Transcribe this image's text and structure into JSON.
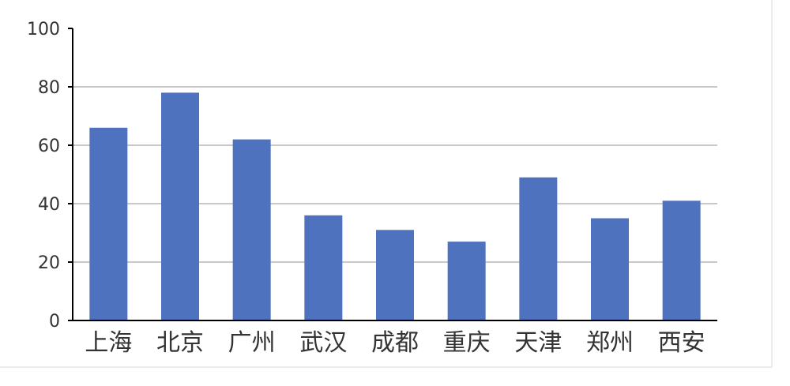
{
  "chart_data": {
    "type": "bar",
    "categories": [
      "上海",
      "北京",
      "广州",
      "武汉",
      "成都",
      "重庆",
      "天津",
      "郑州",
      "西安"
    ],
    "values": [
      66,
      78,
      62,
      36,
      31,
      27,
      49,
      35,
      41
    ],
    "title": "",
    "xlabel": "",
    "ylabel": "",
    "ylim": [
      0,
      100
    ],
    "yticks": [
      "0",
      "20",
      "40",
      "60",
      "80",
      "100"
    ],
    "grid": "horizontal",
    "legend": "none",
    "bar_color": "#4f72be",
    "grid_color": "#c8c8c8",
    "axis_color": "#000000"
  }
}
